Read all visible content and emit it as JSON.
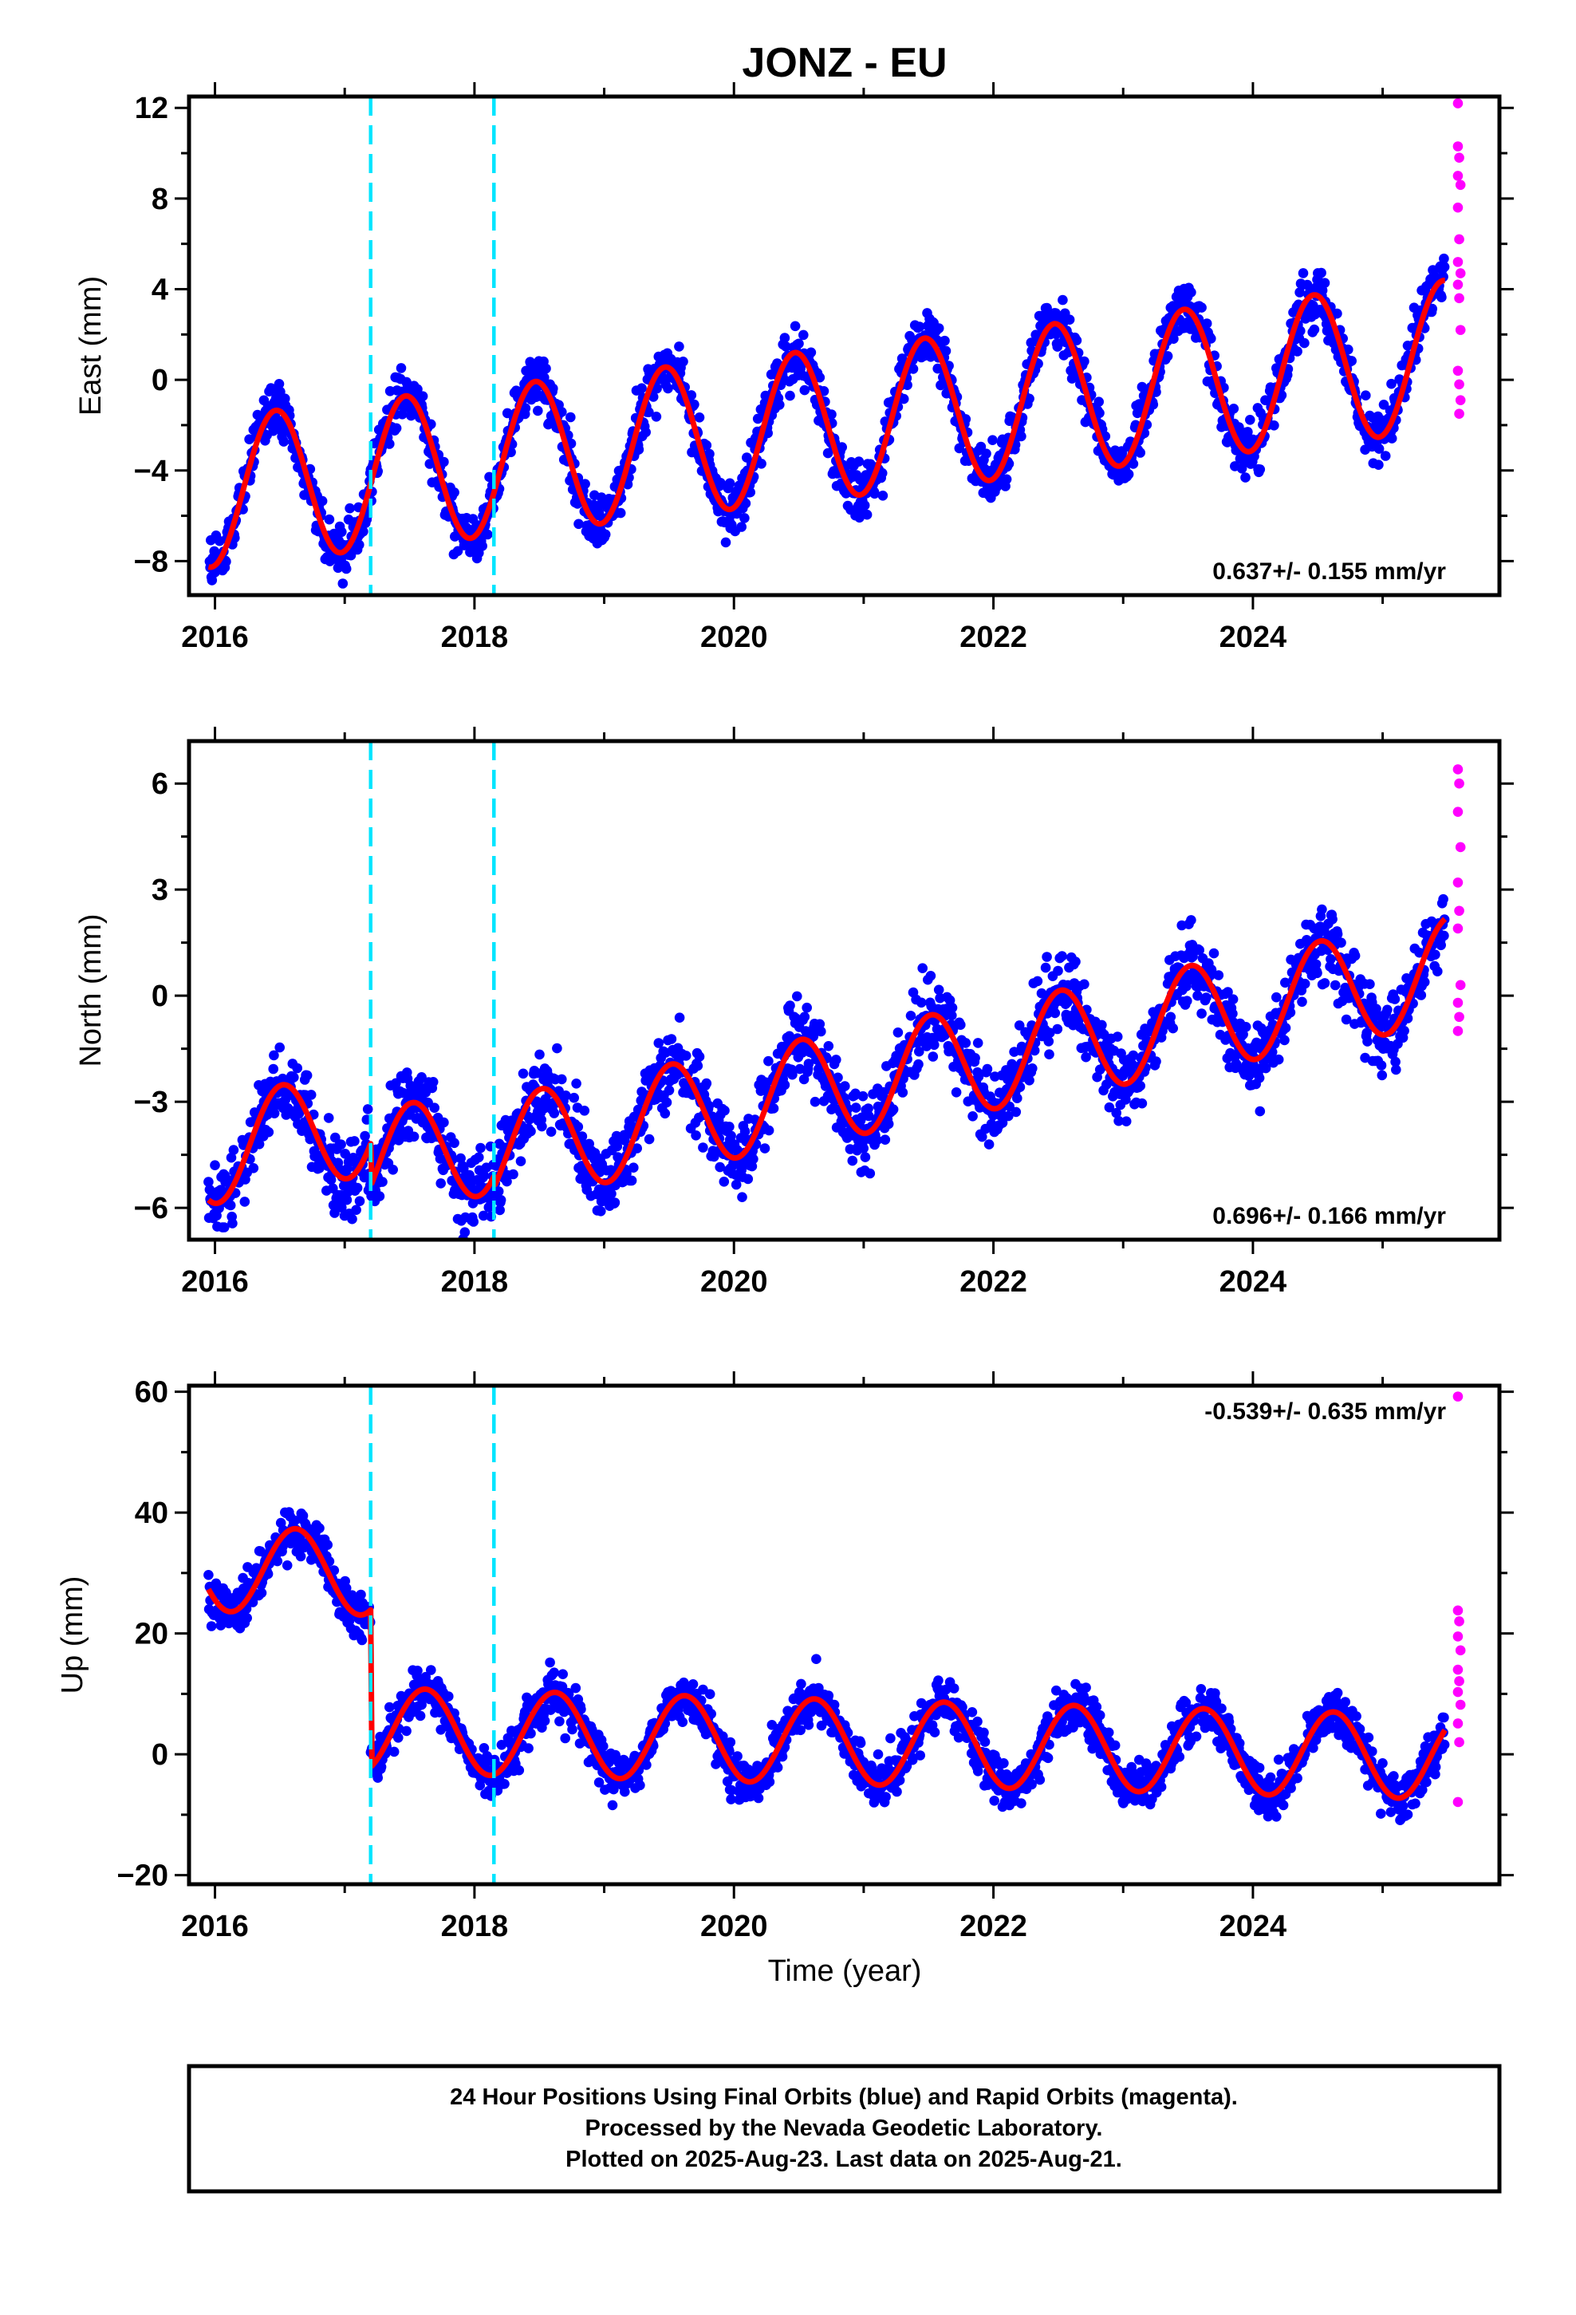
{
  "title": "JONZ - EU",
  "colors": {
    "final_orbits": "#0000ff",
    "rapid_orbits": "#ff00ff",
    "model": "#ff0000",
    "event_lines": "#00e5ff",
    "frame": "#000000"
  },
  "xlabel": "Time (year)",
  "footer": {
    "line1": "24 Hour Positions Using Final Orbits (blue) and Rapid Orbits (magenta).",
    "line2": "Processed by the Nevada Geodetic Laboratory.",
    "line3": "Plotted on 2025-Aug-23. Last data on 2025-Aug-21."
  },
  "chart_data": [
    {
      "type": "scatter",
      "component": "east",
      "ylabel": "East (mm)",
      "rate_label": "0.637+/- 0.155 mm/yr",
      "rate_position": "bottom-right",
      "xlim": [
        2015.8,
        2025.9
      ],
      "ylim": [
        -9.5,
        12.5
      ],
      "xticks": [
        2016,
        2018,
        2020,
        2022,
        2024
      ],
      "xtick_labels": [
        "2016",
        "2018",
        "2020",
        "2022",
        "2024"
      ],
      "yticks": [
        -8,
        -4,
        0,
        4,
        8,
        12
      ],
      "ytick_labels": [
        "−8",
        "−4",
        "0",
        "4",
        "8",
        "12"
      ],
      "event_lines_x": [
        2017.2,
        2018.15
      ],
      "final_start": 2015.95,
      "final_end": 2025.48,
      "model": {
        "offset": -2.4,
        "rate": 0.637,
        "amplitude": 3.3,
        "peak_phase": 0.47,
        "steps": []
      },
      "final_noise_mm": 1.0,
      "rapid_points": [
        {
          "x": 2025.58,
          "y": 12.2
        },
        {
          "x": 2025.58,
          "y": 10.3
        },
        {
          "x": 2025.59,
          "y": 9.8
        },
        {
          "x": 2025.58,
          "y": 9.0
        },
        {
          "x": 2025.6,
          "y": 8.6
        },
        {
          "x": 2025.58,
          "y": 7.6
        },
        {
          "x": 2025.59,
          "y": 6.2
        },
        {
          "x": 2025.58,
          "y": 5.2
        },
        {
          "x": 2025.6,
          "y": 4.7
        },
        {
          "x": 2025.58,
          "y": 4.2
        },
        {
          "x": 2025.59,
          "y": 3.6
        },
        {
          "x": 2025.6,
          "y": 2.2
        },
        {
          "x": 2025.58,
          "y": 0.4
        },
        {
          "x": 2025.59,
          "y": -0.2
        },
        {
          "x": 2025.6,
          "y": -0.9
        },
        {
          "x": 2025.59,
          "y": -1.5
        }
      ]
    },
    {
      "type": "scatter",
      "component": "north",
      "ylabel": "North (mm)",
      "rate_label": "0.696+/- 0.166 mm/yr",
      "rate_position": "bottom-right",
      "xlim": [
        2015.8,
        2025.9
      ],
      "ylim": [
        -6.9,
        7.2
      ],
      "xticks": [
        2016,
        2018,
        2020,
        2022,
        2024
      ],
      "xtick_labels": [
        "2016",
        "2018",
        "2020",
        "2022",
        "2024"
      ],
      "yticks": [
        -6,
        -3,
        0,
        3,
        6
      ],
      "ytick_labels": [
        "−6",
        "−3",
        "0",
        "3",
        "6"
      ],
      "event_lines_x": [
        2017.2,
        2018.15
      ],
      "final_start": 2015.95,
      "final_end": 2025.48,
      "model": {
        "offset": -1.6,
        "rate": 0.696,
        "amplitude": 1.5,
        "peak_phase": 0.52,
        "steps": [
          {
            "x": 2017.2,
            "dy": -1.2
          },
          {
            "x": 2018.15,
            "dy": -0.3
          }
        ]
      },
      "final_noise_mm": 0.9,
      "rapid_points": [
        {
          "x": 2025.58,
          "y": 6.4
        },
        {
          "x": 2025.59,
          "y": 6.0
        },
        {
          "x": 2025.58,
          "y": 5.2
        },
        {
          "x": 2025.6,
          "y": 4.2
        },
        {
          "x": 2025.58,
          "y": 3.2
        },
        {
          "x": 2025.59,
          "y": 2.4
        },
        {
          "x": 2025.58,
          "y": 1.9
        },
        {
          "x": 2025.6,
          "y": 0.3
        },
        {
          "x": 2025.58,
          "y": -0.2
        },
        {
          "x": 2025.59,
          "y": -0.6
        },
        {
          "x": 2025.58,
          "y": -1.0
        }
      ]
    },
    {
      "type": "scatter",
      "component": "up",
      "ylabel": "Up (mm)",
      "rate_label": "-0.539+/- 0.635 mm/yr",
      "rate_position": "top-right",
      "xlim": [
        2015.8,
        2025.9
      ],
      "ylim": [
        -21.5,
        61
      ],
      "xticks": [
        2016,
        2018,
        2020,
        2022,
        2024
      ],
      "xtick_labels": [
        "2016",
        "2018",
        "2020",
        "2022",
        "2024"
      ],
      "yticks": [
        -20,
        0,
        20,
        40,
        60
      ],
      "ytick_labels": [
        "−20",
        "0",
        "20",
        "40",
        "60"
      ],
      "event_lines_x": [
        2017.2,
        2018.15
      ],
      "final_start": 2015.95,
      "final_end": 2025.48,
      "model": {
        "offset": 28.5,
        "rate": -0.539,
        "amplitude": 7.0,
        "peak_phase": 0.62,
        "steps": [
          {
            "x": 2017.2,
            "dy": -26.0
          }
        ]
      },
      "final_noise_mm": 3.2,
      "rapid_points": [
        {
          "x": 2025.58,
          "y": 59.2
        },
        {
          "x": 2025.58,
          "y": 23.8
        },
        {
          "x": 2025.59,
          "y": 22.0
        },
        {
          "x": 2025.58,
          "y": 19.5
        },
        {
          "x": 2025.6,
          "y": 17.2
        },
        {
          "x": 2025.58,
          "y": 14.0
        },
        {
          "x": 2025.59,
          "y": 12.1
        },
        {
          "x": 2025.58,
          "y": 10.3
        },
        {
          "x": 2025.6,
          "y": 8.2
        },
        {
          "x": 2025.58,
          "y": 5.1
        },
        {
          "x": 2025.59,
          "y": 2.0
        },
        {
          "x": 2025.58,
          "y": -7.9
        }
      ]
    }
  ]
}
